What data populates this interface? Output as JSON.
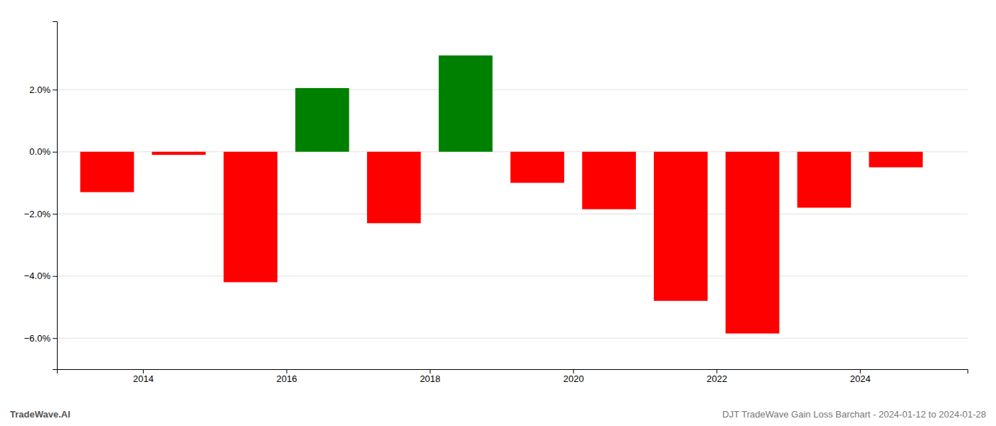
{
  "chart_data": {
    "type": "bar",
    "x": [
      2013.5,
      2014.5,
      2015.5,
      2016.5,
      2017.5,
      2018.5,
      2019.5,
      2020.5,
      2021.5,
      2022.5,
      2023.5,
      2024.5
    ],
    "values": [
      -1.3,
      -0.1,
      -4.2,
      2.05,
      -2.3,
      3.1,
      -1.0,
      -1.85,
      -4.8,
      -5.85,
      -1.8,
      -0.5
    ],
    "colors": [
      "#ff0000",
      "#ff0000",
      "#ff0000",
      "#008000",
      "#ff0000",
      "#008000",
      "#ff0000",
      "#ff0000",
      "#ff0000",
      "#ff0000",
      "#ff0000",
      "#ff0000"
    ],
    "xlim": [
      2012.8,
      2025.5
    ],
    "xticks": [
      2014,
      2016,
      2018,
      2020,
      2022,
      2024
    ],
    "ylim": [
      -7.0,
      4.2
    ],
    "yticks": [
      {
        "value": -6.0,
        "label": "−6.0%"
      },
      {
        "value": -4.0,
        "label": "−4.0%"
      },
      {
        "value": -2.0,
        "label": "−2.0%"
      },
      {
        "value": 0.0,
        "label": "0.0%"
      },
      {
        "value": 2.0,
        "label": "2.0%"
      }
    ],
    "grid": true,
    "annotations": [
      "TradeWave.AI",
      "DJT TradeWave Gain Loss Barchart - 2024-01-12 to 2024-01-28"
    ]
  }
}
